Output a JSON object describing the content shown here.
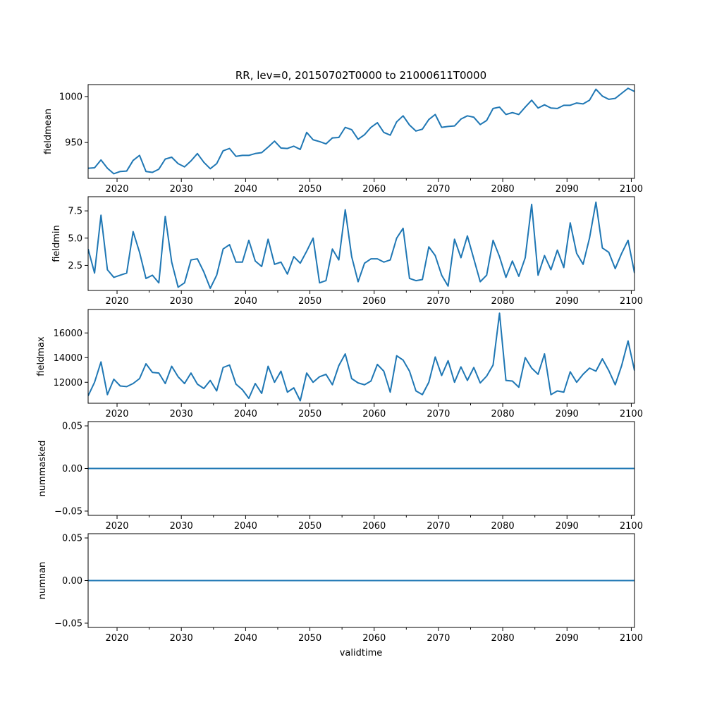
{
  "figure": {
    "title": "RR, lev=0, 20150702T0000 to 21000611T0000",
    "xlabel": "validtime"
  },
  "chart_data": [
    {
      "type": "line",
      "ylabel": "fieldmean",
      "color": "#1f77b4",
      "xlim": [
        2015.5,
        2100.5
      ],
      "ylim": [
        911,
        1013
      ],
      "yticks": [
        950,
        1000
      ],
      "ytick_labels": [
        "950",
        "1000"
      ],
      "xticks": [
        2020,
        2030,
        2040,
        2050,
        2060,
        2070,
        2080,
        2090,
        2100
      ],
      "xtick_labels": [
        "2020",
        "2030",
        "2040",
        "2050",
        "2060",
        "2070",
        "2080",
        "2090",
        "2100"
      ],
      "x_start": 2015.5,
      "x_step": 1,
      "values": [
        922,
        922.5,
        931,
        922,
        916,
        918.5,
        919,
        930.5,
        936,
        918.5,
        917.5,
        921,
        932,
        934,
        927,
        923.5,
        930,
        938,
        928.5,
        921.5,
        927,
        941,
        943.5,
        935,
        936,
        936,
        938,
        939,
        945,
        951.5,
        944,
        943.5,
        946,
        942.5,
        961,
        953,
        951,
        948.5,
        955,
        955.5,
        966.5,
        964,
        953.5,
        958.5,
        966.5,
        971.5,
        961,
        958,
        972.5,
        979,
        969,
        962.5,
        964.5,
        975,
        980.5,
        966.5,
        967.5,
        968,
        975.5,
        979,
        977.5,
        969.5,
        974,
        987,
        988.5,
        980.5,
        982.5,
        980.5,
        988.5,
        996,
        987.5,
        991,
        987.5,
        987,
        990.5,
        990.5,
        993,
        992,
        996,
        1008,
        1000.5,
        997,
        998,
        1003.5,
        1009,
        1005.5
      ]
    },
    {
      "type": "line",
      "ylabel": "fieldmin",
      "color": "#1f77b4",
      "xlim": [
        2015.5,
        2100.5
      ],
      "ylim": [
        0.2,
        8.8
      ],
      "yticks": [
        2.5,
        5,
        7.5
      ],
      "ytick_labels": [
        "2.5",
        "5.0",
        "7.5"
      ],
      "xticks": [
        2020,
        2030,
        2040,
        2050,
        2060,
        2070,
        2080,
        2090,
        2100
      ],
      "xtick_labels": [
        "2020",
        "2030",
        "2040",
        "2050",
        "2060",
        "2070",
        "2080",
        "2090",
        "2100"
      ],
      "x_start": 2015.5,
      "x_step": 1,
      "values": [
        4.0,
        1.8,
        7.1,
        2.1,
        1.4,
        1.6,
        1.8,
        5.6,
        3.7,
        1.3,
        1.6,
        0.9,
        7.0,
        2.8,
        0.5,
        0.9,
        3.0,
        3.1,
        1.9,
        0.4,
        1.6,
        4.0,
        4.4,
        2.8,
        2.8,
        4.8,
        2.9,
        2.4,
        4.9,
        2.6,
        2.8,
        1.7,
        3.3,
        2.7,
        3.8,
        5.0,
        0.9,
        1.1,
        4.0,
        3.0,
        7.6,
        3.3,
        1.0,
        2.7,
        3.1,
        3.1,
        2.8,
        3.0,
        5.0,
        5.9,
        1.3,
        1.1,
        1.2,
        4.2,
        3.4,
        1.6,
        0.6,
        4.9,
        3.2,
        5.2,
        3.1,
        1.0,
        1.6,
        4.8,
        3.3,
        1.4,
        2.9,
        1.5,
        3.2,
        8.1,
        1.6,
        3.4,
        2.1,
        3.9,
        2.3,
        6.4,
        3.6,
        2.6,
        5.0,
        8.3,
        4.1,
        3.7,
        2.2,
        3.6,
        4.8,
        1.8
      ]
    },
    {
      "type": "line",
      "ylabel": "fieldmax",
      "color": "#1f77b4",
      "xlim": [
        2015.5,
        2100.5
      ],
      "ylim": [
        10300,
        17900
      ],
      "yticks": [
        12000,
        14000,
        16000
      ],
      "ytick_labels": [
        "12000",
        "14000",
        "16000"
      ],
      "xticks": [
        2020,
        2030,
        2040,
        2050,
        2060,
        2070,
        2080,
        2090,
        2100
      ],
      "xtick_labels": [
        "2020",
        "2030",
        "2040",
        "2050",
        "2060",
        "2070",
        "2080",
        "2090",
        "2100"
      ],
      "x_start": 2015.5,
      "x_step": 1,
      "values": [
        10900,
        12000,
        13650,
        11000,
        12250,
        11700,
        11650,
        11900,
        12300,
        13500,
        12800,
        12750,
        11900,
        13300,
        12450,
        11900,
        12750,
        11850,
        11500,
        12150,
        11300,
        13200,
        13400,
        11850,
        11400,
        10700,
        11900,
        11100,
        13300,
        12000,
        12900,
        11200,
        11550,
        10500,
        12750,
        12000,
        12450,
        12650,
        11800,
        13350,
        14300,
        12300,
        11950,
        11800,
        12100,
        13450,
        12900,
        11200,
        14150,
        13800,
        12900,
        11300,
        11000,
        12000,
        14050,
        12550,
        13750,
        12000,
        13250,
        12150,
        13200,
        11950,
        12500,
        13400,
        17600,
        12150,
        12100,
        11600,
        14000,
        13150,
        12650,
        14300,
        11000,
        11300,
        11200,
        12850,
        12000,
        12650,
        13150,
        12900,
        13900,
        12950,
        11800,
        13350,
        15350,
        12950
      ]
    },
    {
      "type": "line",
      "ylabel": "nummasked",
      "color": "#1f77b4",
      "xlim": [
        2015.5,
        2100.5
      ],
      "ylim": [
        -0.055,
        0.055
      ],
      "yticks": [
        -0.05,
        0,
        0.05
      ],
      "ytick_labels": [
        "−0.05",
        "0.00",
        "0.05"
      ],
      "xticks": [
        2020,
        2030,
        2040,
        2050,
        2060,
        2070,
        2080,
        2090,
        2100
      ],
      "xtick_labels": [
        "2020",
        "2030",
        "2040",
        "2050",
        "2060",
        "2070",
        "2080",
        "2090",
        "2100"
      ],
      "x": [
        2015.5,
        2100.5
      ],
      "values": [
        0,
        0
      ]
    },
    {
      "type": "line",
      "ylabel": "numnan",
      "color": "#1f77b4",
      "xlim": [
        2015.5,
        2100.5
      ],
      "ylim": [
        -0.055,
        0.055
      ],
      "yticks": [
        -0.05,
        0,
        0.05
      ],
      "ytick_labels": [
        "−0.05",
        "0.00",
        "0.05"
      ],
      "xticks": [
        2020,
        2030,
        2040,
        2050,
        2060,
        2070,
        2080,
        2090,
        2100
      ],
      "xtick_labels": [
        "2020",
        "2030",
        "2040",
        "2050",
        "2060",
        "2070",
        "2080",
        "2090",
        "2100"
      ],
      "x": [
        2015.5,
        2100.5
      ],
      "values": [
        0,
        0
      ]
    }
  ]
}
